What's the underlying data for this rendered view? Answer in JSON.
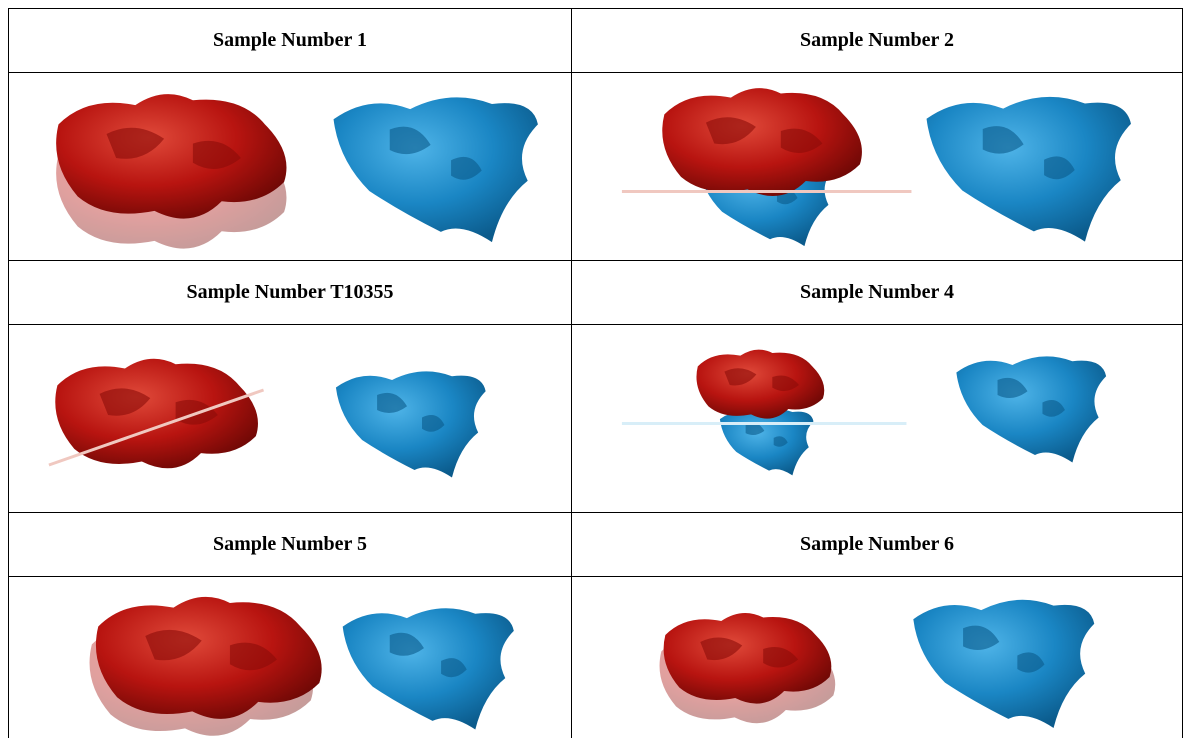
{
  "table": {
    "rows": [
      [
        "Sample Number 1",
        "Sample Number 2"
      ],
      [
        "Sample Number T10355",
        "Sample Number 4"
      ],
      [
        "Sample Number 5",
        "Sample Number 6"
      ]
    ]
  }
}
